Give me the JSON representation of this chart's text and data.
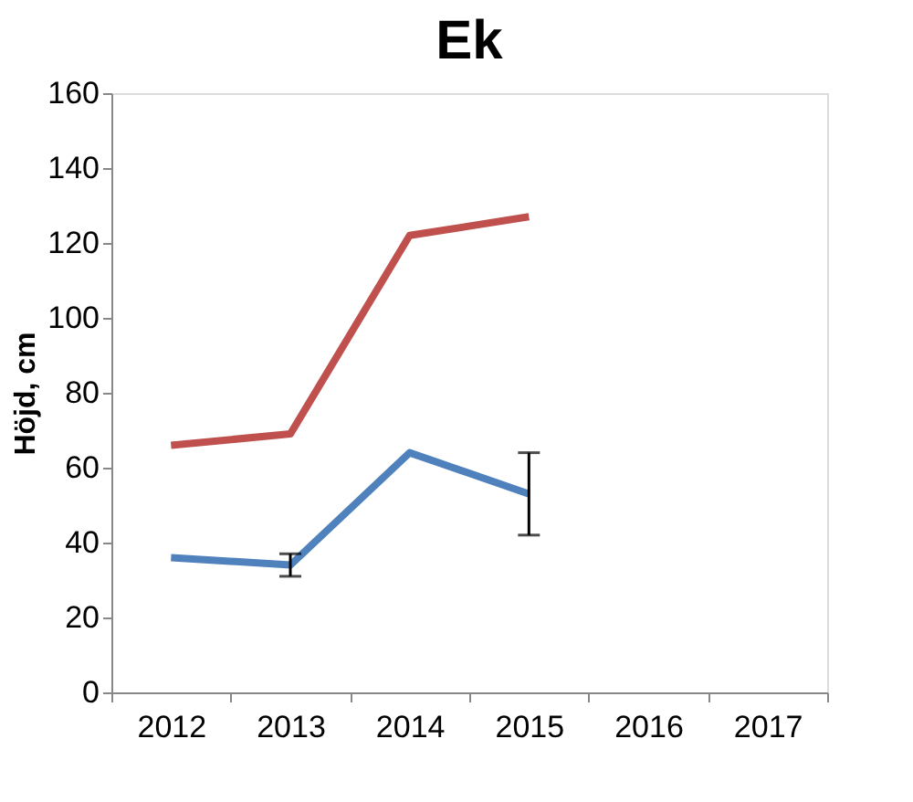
{
  "chart_data": {
    "type": "line",
    "title": "Ek",
    "ylabel": "Höjd, cm",
    "categories": [
      "2012",
      "2013",
      "2014",
      "2015",
      "2016",
      "2017"
    ],
    "series": [
      {
        "color": "#c0504d",
        "values": [
          66,
          69,
          122,
          127,
          null,
          null
        ]
      },
      {
        "color": "#4f81bd",
        "values": [
          36,
          34,
          64,
          53,
          null,
          null
        ],
        "errors": [
          null,
          [
            31,
            37
          ],
          null,
          [
            42,
            64
          ],
          null,
          null
        ]
      }
    ],
    "ylim": [
      0,
      160
    ],
    "yticks": [
      0,
      20,
      40,
      60,
      80,
      100,
      120,
      140,
      160
    ],
    "grid": false,
    "marker": "none",
    "line_style": "solid"
  }
}
